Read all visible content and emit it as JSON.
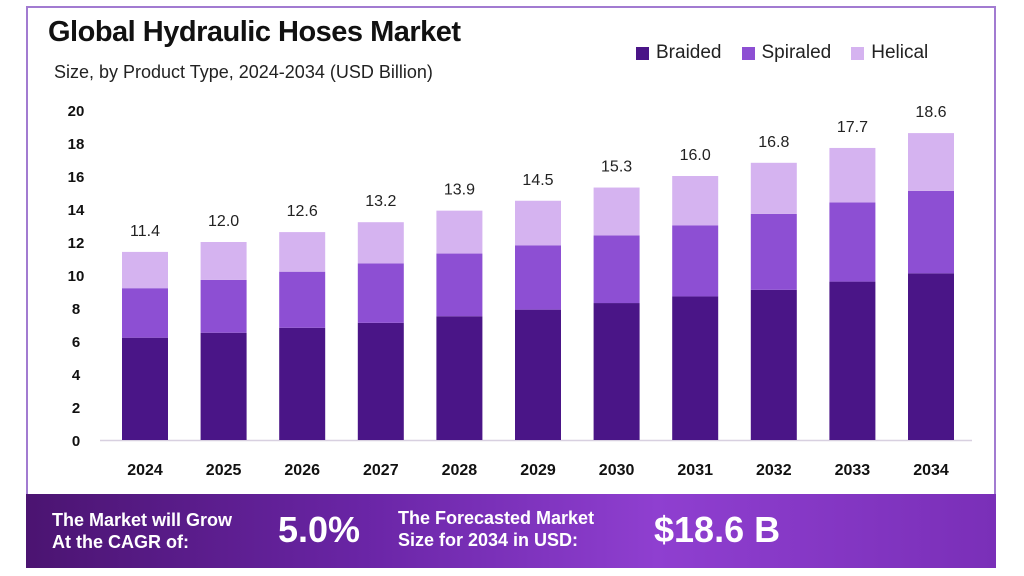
{
  "chart_data": {
    "type": "bar",
    "stacked": true,
    "title": "Global Hydraulic Hoses Market",
    "subtitle": "Size, by Product Type, 2024-2034 (USD Billion)",
    "categories": [
      "2024",
      "2025",
      "2026",
      "2027",
      "2028",
      "2029",
      "2030",
      "2031",
      "2032",
      "2033",
      "2034"
    ],
    "series": [
      {
        "name": "Braided",
        "color": "#4a1587",
        "values": [
          6.2,
          6.5,
          6.8,
          7.1,
          7.5,
          7.9,
          8.3,
          8.7,
          9.1,
          9.6,
          10.1
        ]
      },
      {
        "name": "Spiraled",
        "color": "#8d4fd3",
        "values": [
          3.0,
          3.2,
          3.4,
          3.6,
          3.8,
          3.9,
          4.1,
          4.3,
          4.6,
          4.8,
          5.0
        ]
      },
      {
        "name": "Helical",
        "color": "#d5b3f0",
        "values": [
          2.2,
          2.3,
          2.4,
          2.5,
          2.6,
          2.7,
          2.9,
          3.0,
          3.1,
          3.3,
          3.5
        ]
      }
    ],
    "totals": [
      "11.4",
      "12.0",
      "12.6",
      "13.2",
      "13.9",
      "14.5",
      "15.3",
      "16.0",
      "16.8",
      "17.7",
      "18.6"
    ],
    "yticks": [
      0,
      2,
      4,
      6,
      8,
      10,
      12,
      14,
      16,
      18,
      20
    ],
    "ylim": [
      0,
      20
    ],
    "legend_position": "top-right"
  },
  "legend": {
    "braided": "Braided",
    "spiraled": "Spiraled",
    "helical": "Helical"
  },
  "banner": {
    "cagr_label_line1": "The Market will Grow",
    "cagr_label_line2": "At the CAGR of:",
    "cagr_value": "5.0%",
    "forecast_label_line1": "The Forecasted Market",
    "forecast_label_line2": "Size for 2034 in USD:",
    "forecast_value": "$18.6 B"
  }
}
